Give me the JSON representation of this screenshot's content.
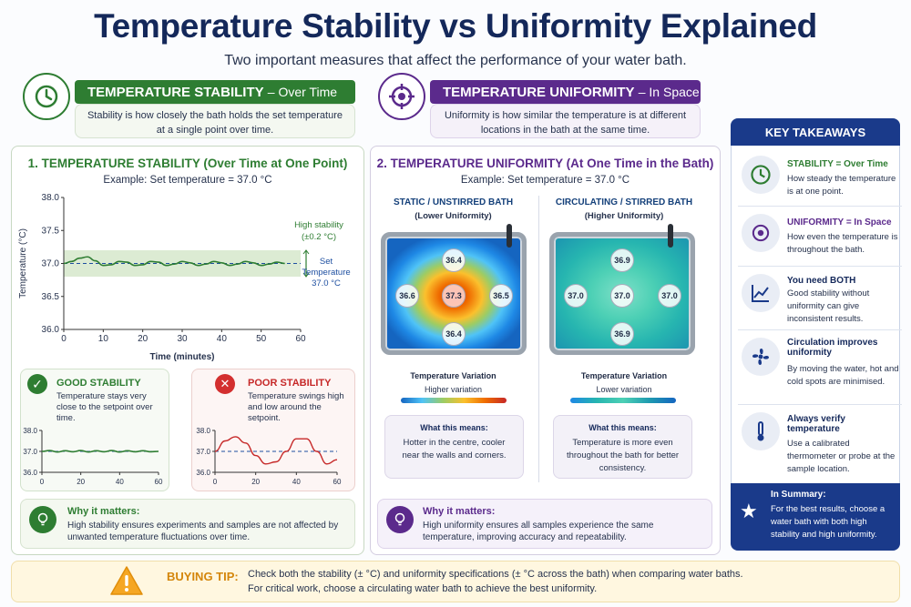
{
  "header": {
    "title": "Temperature Stability vs Uniformity Explained",
    "subtitle": "Two important measures that affect the performance of your water bath."
  },
  "stability_header": {
    "label": "TEMPERATURE STABILITY",
    "suffix": "– Over Time",
    "description": "Stability is how closely the bath holds the set temperature at a single point over time.",
    "icon": "clock-icon",
    "color": "#2e7d32"
  },
  "uniformity_header": {
    "label": "TEMPERATURE UNIFORMITY",
    "suffix": "– In Space",
    "description": "Uniformity is how similar the temperature is at different locations in the bath at the same time.",
    "icon": "target-icon",
    "color": "#5b2a8c"
  },
  "stability_panel": {
    "title": "1. TEMPERATURE STABILITY (Over Time at One Point)",
    "example": "Example: Set temperature = 37.0 °C",
    "band_label_1": "High stability",
    "band_label_2": "(±0.2 °C)",
    "setpoint_label_1": "Set",
    "setpoint_label_2": "Temperature",
    "setpoint_label_3": "37.0 °C"
  },
  "chart_data": [
    {
      "type": "line",
      "xlabel": "Time (minutes)",
      "ylabel": "Temperature (°C)",
      "xlim": [
        0,
        60
      ],
      "ylim": [
        36.0,
        38.0
      ],
      "x_ticks": [
        "0",
        "10",
        "20",
        "30",
        "40",
        "50",
        "60"
      ],
      "y_ticks": [
        "38.0",
        "37.5",
        "37.0",
        "36.5",
        "36.0"
      ],
      "setpoint": 37.0,
      "band": [
        36.8,
        37.2
      ],
      "x": [
        0,
        2,
        4,
        6,
        8,
        10,
        12,
        14,
        16,
        18,
        20,
        22,
        24,
        26,
        28,
        30,
        32,
        34,
        36,
        38,
        40,
        42,
        44,
        46,
        48,
        50,
        52,
        54,
        56
      ],
      "y": [
        37.0,
        37.03,
        37.08,
        37.1,
        37.04,
        36.97,
        36.98,
        37.03,
        37.02,
        36.97,
        36.98,
        37.03,
        37.02,
        36.97,
        36.99,
        37.03,
        37.01,
        36.97,
        36.99,
        37.03,
        37.01,
        36.97,
        36.99,
        37.03,
        37.01,
        36.97,
        36.99,
        37.02,
        37.0
      ]
    },
    {
      "type": "line",
      "title": "GOOD STABILITY",
      "xlim": [
        0,
        60
      ],
      "ylim": [
        36.0,
        38.0
      ],
      "x_ticks": [
        "0",
        "20",
        "40",
        "60"
      ],
      "y_ticks": [
        "38.0",
        "37.0",
        "36.0"
      ],
      "setpoint": 37.0,
      "x": [
        0,
        4,
        8,
        12,
        16,
        20,
        24,
        28,
        32,
        36,
        40,
        44,
        48,
        52,
        56,
        60
      ],
      "y": [
        37.0,
        37.04,
        36.97,
        37.03,
        36.98,
        37.04,
        36.97,
        37.03,
        36.98,
        37.04,
        36.97,
        37.03,
        36.98,
        37.03,
        36.98,
        37.0
      ]
    },
    {
      "type": "line",
      "title": "POOR STABILITY",
      "xlim": [
        0,
        60
      ],
      "ylim": [
        36.0,
        38.0
      ],
      "x_ticks": [
        "0",
        "20",
        "40",
        "60"
      ],
      "y_ticks": [
        "38.0",
        "37.0",
        "36.0"
      ],
      "setpoint": 37.0,
      "x": [
        0,
        5,
        10,
        15,
        20,
        25,
        30,
        35,
        40,
        45,
        50,
        55,
        60
      ],
      "y": [
        37.0,
        37.5,
        37.7,
        37.4,
        36.8,
        36.4,
        36.5,
        37.0,
        37.6,
        37.6,
        37.0,
        36.4,
        36.6
      ]
    }
  ],
  "good_stability": {
    "title": "GOOD STABILITY",
    "text": "Temperature stays very close to the setpoint over time."
  },
  "poor_stability": {
    "title": "POOR STABILITY",
    "text": "Temperature swings high and low around the setpoint."
  },
  "stability_why": {
    "title": "Why it matters:",
    "text": "High stability ensures experiments and samples are not affected by unwanted temperature fluctuations over time."
  },
  "uniformity_panel": {
    "title": "2. TEMPERATURE UNIFORMITY (At One Time in the Bath)",
    "example": "Example: Set temperature = 37.0 °C",
    "static": {
      "title": "STATIC / UNSTIRRED BATH",
      "subtitle": "(Lower Uniformity)",
      "readings": [
        "36.4",
        "36.6",
        "37.3",
        "36.5",
        "36.4"
      ],
      "variation_label": "Temperature Variation",
      "variation_value": "Higher variation",
      "meaning_title": "What this means:",
      "meaning_text": "Hotter in the centre, cooler near the walls and corners."
    },
    "circulating": {
      "title": "CIRCULATING / STIRRED BATH",
      "subtitle": "(Higher Uniformity)",
      "readings": [
        "36.9",
        "37.0",
        "37.0",
        "37.0",
        "36.9"
      ],
      "variation_label": "Temperature Variation",
      "variation_value": "Lower variation",
      "meaning_title": "What this means:",
      "meaning_text": "Temperature is more even throughout the bath for better consistency."
    }
  },
  "uniformity_why": {
    "title": "Why it matters:",
    "text": "High uniformity ensures all samples experience the same temperature, improving accuracy and repeatability."
  },
  "takeaways": {
    "title": "KEY TAKEAWAYS",
    "items": [
      {
        "title": "STABILITY = Over Time",
        "text": "How steady the temperature is at one point.",
        "icon": "clock-icon"
      },
      {
        "title": "UNIFORMITY = In Space",
        "text": "How even the temperature is throughout the bath.",
        "icon": "target-icon"
      },
      {
        "title": "You need BOTH",
        "text": "Good stability without uniformity can give inconsistent results.",
        "icon": "trend-chart-icon"
      },
      {
        "title": "Circulation improves uniformity",
        "text": "By moving the water, hot and cold spots are minimised.",
        "icon": "fan-icon"
      },
      {
        "title": "Always verify temperature",
        "text": "Use a calibrated thermometer or probe at the sample location.",
        "icon": "thermometer-icon"
      }
    ],
    "summary_title": "In Summary:",
    "summary_text": "For the best results, choose a water bath with both high stability and high uniformity."
  },
  "buying_tip": {
    "label": "BUYING TIP:",
    "line1": "Check both the stability (± °C) and uniformity specifications (± °C across the bath) when comparing water baths.",
    "line2": "For critical work, choose a circulating water bath to achieve the best uniformity."
  }
}
